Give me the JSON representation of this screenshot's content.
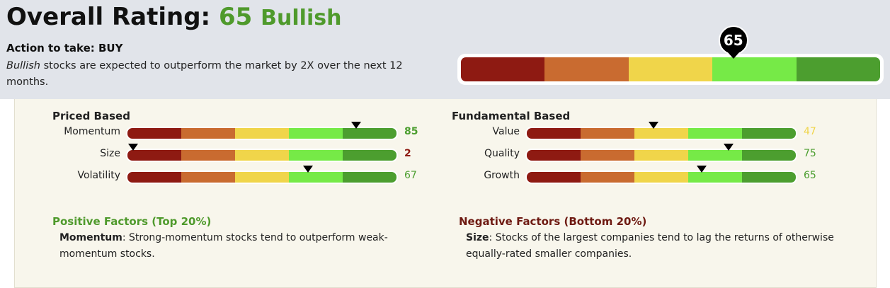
{
  "header": {
    "title_prefix": "Overall Rating:",
    "rating_value": "65",
    "rating_label": "Bullish",
    "action": "Action to take: BUY",
    "desc_emphasis": "Bullish",
    "desc_rest": " stocks are expected to outperform the market by 2X over the next 12 months.",
    "overall_score": 65
  },
  "colors": {
    "very_bearish": "#8e1a12",
    "bearish": "#c96b30",
    "neutral": "#f0d54a",
    "bullish": "#76ea47",
    "very_bullish": "#4c9e2f",
    "accent_green": "#4f9a2c",
    "negative_red": "#6e1a12"
  },
  "priced": {
    "title": "Priced Based",
    "rows": [
      {
        "label": "Momentum",
        "value": "85",
        "score": 85,
        "color": "#4c9e2f",
        "bold": true
      },
      {
        "label": "Size",
        "value": "2",
        "score": 2,
        "color": "#8e1a12",
        "bold": true
      },
      {
        "label": "Volatility",
        "value": "67",
        "score": 67,
        "color": "#4c9e2f",
        "bold": false
      }
    ]
  },
  "fundamental": {
    "title": "Fundamental Based",
    "rows": [
      {
        "label": "Value",
        "value": "47",
        "score": 47,
        "color": "#f0d54a",
        "bold": false
      },
      {
        "label": "Quality",
        "value": "75",
        "score": 75,
        "color": "#4c9e2f",
        "bold": false
      },
      {
        "label": "Growth",
        "value": "65",
        "score": 65,
        "color": "#4c9e2f",
        "bold": false
      }
    ]
  },
  "positive": {
    "title": "Positive Factors (Top 20%)",
    "term": "Momentum",
    "text": ": Strong-momentum stocks tend to outperform weak-momentum stocks."
  },
  "negative": {
    "title": "Negative Factors (Bottom 20%)",
    "term": "Size",
    "text": ": Stocks of the largest companies tend to lag the returns of otherwise equally-rated smaller companies."
  }
}
